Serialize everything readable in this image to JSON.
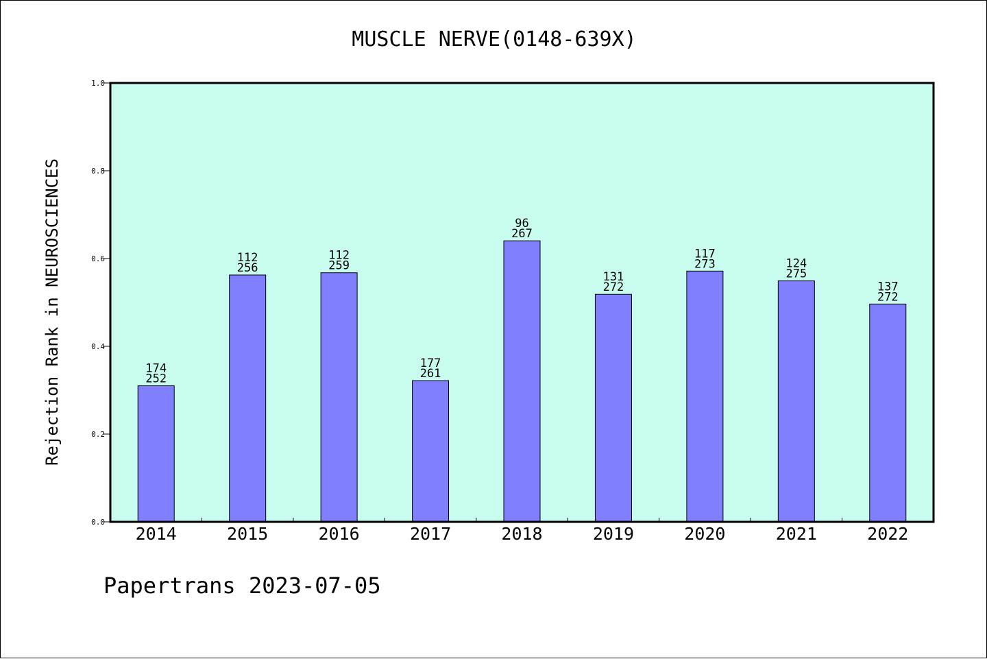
{
  "chart_data": {
    "type": "bar",
    "title": "MUSCLE NERVE(0148-639X)",
    "xlabel": "",
    "ylabel": "Rejection Rank in NEUROSCIENCES",
    "categories": [
      "2014",
      "2015",
      "2016",
      "2017",
      "2018",
      "2019",
      "2020",
      "2021",
      "2022"
    ],
    "values": [
      0.31,
      0.5625,
      0.5676,
      0.3218,
      0.6404,
      0.5184,
      0.5714,
      0.5491,
      0.4963
    ],
    "labels_top": [
      "174",
      "112",
      "112",
      "177",
      "96",
      "131",
      "117",
      "124",
      "137"
    ],
    "labels_bottom": [
      "252",
      "256",
      "259",
      "261",
      "267",
      "272",
      "273",
      "275",
      "272"
    ],
    "ylim": [
      0,
      1.0
    ],
    "yticks": [
      "0.0",
      "0.2",
      "0.4",
      "0.6",
      "0.8",
      "1.0"
    ],
    "grid": false,
    "colors": {
      "plot_bg": "#c8fcee",
      "bar": "#8080ff",
      "bar_edge": "#000000"
    }
  },
  "footer": "Papertrans 2023-07-05"
}
